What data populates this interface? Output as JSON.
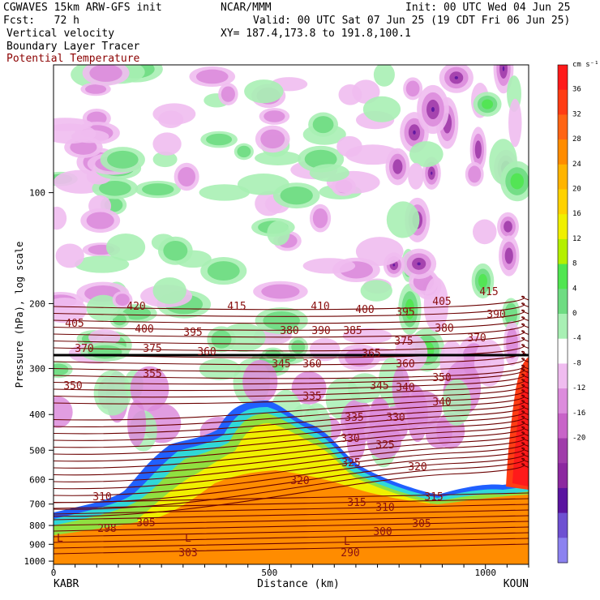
{
  "header": {
    "title": "CGWAVES 15km ARW-GFS init",
    "forecast": "Fcst:   72 h",
    "source": "NCAR/MMM",
    "init": "Init: 00 UTC Wed 04 Jun 25",
    "valid": "Valid: 00 UTC Sat 07 Jun 25 (19 CDT Fri 06 Jun 25)",
    "xy": "XY= 187.4,173.8 to 191.8,100.1",
    "field1": "Vertical velocity",
    "field2": "Boundary Layer Tracer",
    "field3": "Potential Temperature"
  },
  "colors": {
    "theta_contour": "#6b0000",
    "theta_label": "#8b1010",
    "terrain": "#ff8c00",
    "tracer_yellow": "#f0f000",
    "tracer_green": "#90e040",
    "tracer_cyan": "#30d8d8",
    "tracer_blue": "#2060ff",
    "tropopause_line": "#000000"
  },
  "chart_data": {
    "type": "heatmap",
    "title": "Vertical velocity",
    "xlabel": "Distance (km)",
    "ylabel": "Pressure (hPa), log scale",
    "x_ticks": [
      "0",
      "500",
      "1000"
    ],
    "xlim": [
      0,
      1100
    ],
    "y_scale": "log",
    "y_ticks": [
      "100",
      "200",
      "300",
      "400",
      "500",
      "600",
      "700",
      "800",
      "900",
      "1000"
    ],
    "endpoints": {
      "left": "KABR",
      "right": "KOUN"
    },
    "colorbar": {
      "unit": "cm s⁻¹",
      "ticks": [
        "36",
        "32",
        "28",
        "24",
        "20",
        "16",
        "12",
        "8",
        "4",
        "0",
        "-4",
        "-8",
        "-12",
        "-16",
        "-20"
      ],
      "colors": [
        "#ff1a1a",
        "#ff3c14",
        "#ff6414",
        "#ff8c00",
        "#ffb400",
        "#ffd200",
        "#f0f000",
        "#b4f000",
        "#50e650",
        "#6edc82",
        "#a8f0b4",
        "#ffffff",
        "#f0bcf0",
        "#dc8cdc",
        "#c864c8",
        "#a03caa",
        "#8c28a0",
        "#5a14a0",
        "#6e50d2",
        "#8c82f0"
      ]
    },
    "theta_contour_labels": [
      "420",
      "415",
      "410",
      "400",
      "395",
      "405",
      "415",
      "405",
      "400",
      "395",
      "390",
      "385",
      "380",
      "390",
      "380",
      "375",
      "370",
      "375",
      "370",
      "360",
      "365",
      "360",
      "345",
      "350",
      "355",
      "360",
      "350",
      "345",
      "340",
      "340",
      "335",
      "335",
      "330",
      "330",
      "325",
      "325",
      "320",
      "320",
      "315",
      "315",
      "310",
      "310",
      "305",
      "305",
      "300",
      "298",
      "303",
      "290"
    ],
    "low_markers": [
      "L",
      "L",
      "L"
    ]
  }
}
